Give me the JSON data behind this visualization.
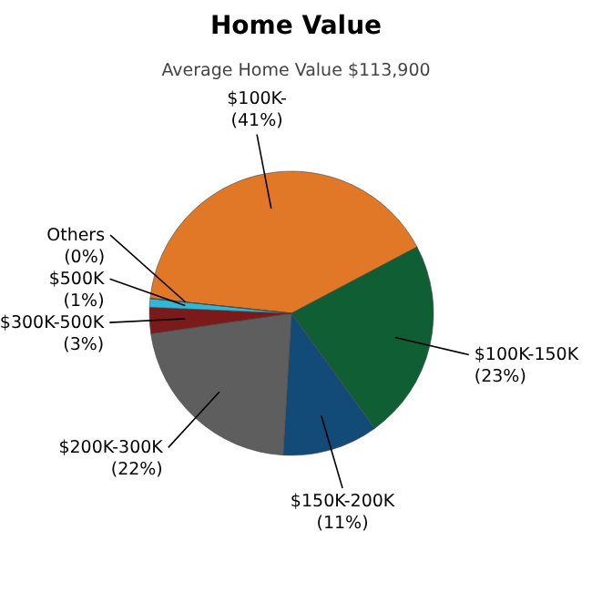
{
  "chart_data": {
    "type": "pie",
    "title": "Home Value",
    "subtitle": "Average Home Value  $113,900",
    "categories": [
      "$100K-",
      "$100K-150K",
      "$150K-200K",
      "$200K-300K",
      "$300K-500K",
      "$500K",
      "Others"
    ],
    "values": [
      41,
      23,
      11,
      22,
      3,
      1,
      0
    ],
    "colors": [
      "#e07828",
      "#0f5e34",
      "#124a78",
      "#5e5e5e",
      "#7a1a1a",
      "#30b8d8",
      "#9ad8e8"
    ],
    "value_labels": [
      "(41%)",
      "(23%)",
      "(11%)",
      "(22%)",
      "(3%)",
      "(1%)",
      "(0%)"
    ]
  }
}
